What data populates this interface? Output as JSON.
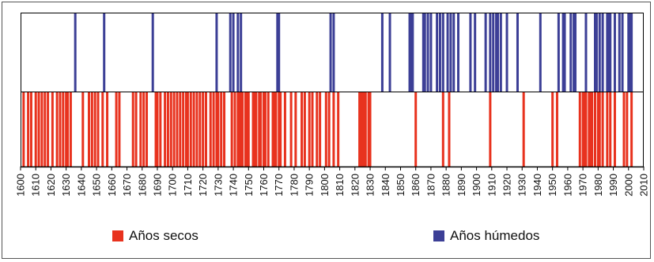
{
  "colors": {
    "dry": "#e8321e",
    "wet": "#3c3f96",
    "axis": "#000000",
    "frame": "#555555"
  },
  "legend": {
    "dry_label": "Años secos",
    "wet_label": "Años húmedos"
  },
  "chart_data": {
    "type": "bar",
    "description_kind": "event-strip",
    "xlim": [
      1600,
      2010
    ],
    "x_ticks": [
      1600,
      1610,
      1620,
      1630,
      1640,
      1650,
      1660,
      1670,
      1680,
      1690,
      1700,
      1710,
      1720,
      1730,
      1740,
      1750,
      1760,
      1770,
      1780,
      1790,
      1800,
      1810,
      1820,
      1830,
      1840,
      1850,
      1860,
      1870,
      1880,
      1890,
      1900,
      1910,
      1920,
      1930,
      1940,
      1950,
      1960,
      1970,
      1980,
      1990,
      2000,
      2010
    ],
    "series": [
      {
        "name": "Años secos",
        "color": "#e8321e",
        "years": [
          1602,
          1605,
          1607,
          1610,
          1612,
          1614,
          1616,
          1618,
          1621,
          1624,
          1626,
          1628,
          1630,
          1631,
          1633,
          1641,
          1645,
          1647,
          1649,
          1651,
          1654,
          1657,
          1663,
          1665,
          1674,
          1676,
          1679,
          1681,
          1683,
          1689,
          1690,
          1692,
          1695,
          1697,
          1699,
          1701,
          1703,
          1705,
          1707,
          1709,
          1710,
          1712,
          1714,
          1716,
          1718,
          1720,
          1722,
          1725,
          1727,
          1729,
          1730,
          1732,
          1734,
          1739,
          1741,
          1743,
          1744,
          1745,
          1746,
          1748,
          1749,
          1750,
          1753,
          1754,
          1755,
          1757,
          1758,
          1760,
          1761,
          1763,
          1766,
          1767,
          1768,
          1770,
          1771,
          1774,
          1778,
          1781,
          1785,
          1787,
          1790,
          1792,
          1795,
          1797,
          1801,
          1803,
          1806,
          1809,
          1823,
          1824,
          1825,
          1826,
          1827,
          1829,
          1830,
          1860,
          1878,
          1882,
          1909,
          1931,
          1950,
          1953,
          1968,
          1970,
          1971,
          1972,
          1974,
          1975,
          1976,
          1978,
          1980,
          1981,
          1983,
          1986,
          1988,
          1991,
          1997,
          1999,
          2002
        ]
      },
      {
        "name": "Años húmedos",
        "color": "#3c3f96",
        "years": [
          1636,
          1655,
          1687,
          1729,
          1738,
          1740,
          1743,
          1745,
          1769,
          1770,
          1804,
          1806,
          1838,
          1843,
          1856,
          1857,
          1858,
          1865,
          1866,
          1868,
          1870,
          1874,
          1876,
          1878,
          1881,
          1883,
          1885,
          1888,
          1896,
          1899,
          1906,
          1909,
          1911,
          1913,
          1914,
          1916,
          1920,
          1927,
          1942,
          1954,
          1957,
          1958,
          1962,
          1964,
          1965,
          1972,
          1978,
          1979,
          1981,
          1983,
          1986,
          1987,
          1988,
          1991,
          1994,
          1996,
          2000,
          2001,
          2002
        ]
      }
    ]
  }
}
